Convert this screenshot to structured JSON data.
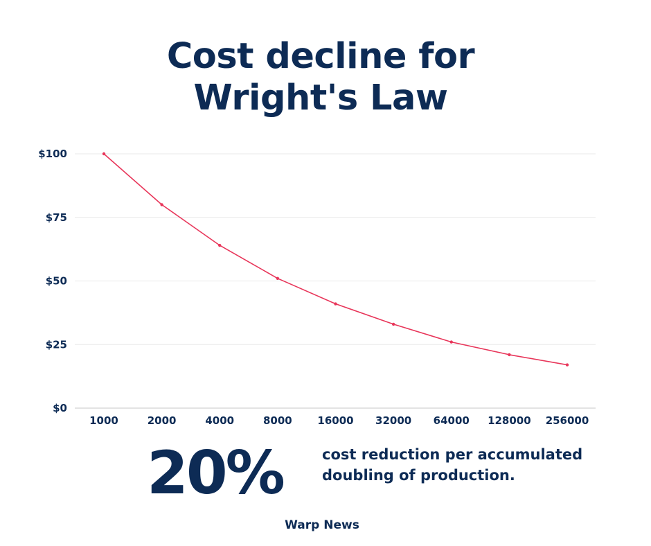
{
  "title": {
    "line1": "Cost decline for",
    "line2": "Wright's Law"
  },
  "chart_data": {
    "type": "line",
    "title": "Cost decline for Wright's Law",
    "xlabel": "",
    "ylabel": "",
    "categories": [
      "1000",
      "2000",
      "4000",
      "8000",
      "16000",
      "32000",
      "64000",
      "128000",
      "256000"
    ],
    "series": [
      {
        "name": "Cost",
        "values": [
          100,
          80,
          64,
          51,
          41,
          33,
          26,
          21,
          17
        ]
      }
    ],
    "ylim": [
      0,
      100
    ],
    "yticks": [
      0,
      25,
      50,
      75,
      100
    ],
    "ytick_labels": [
      "$0",
      "$25",
      "$50",
      "$75",
      "$100"
    ],
    "grid": true,
    "legend": "none",
    "colors": {
      "line": "#e8365a",
      "grid": "#e9e9e9",
      "axis": "#c7c7c7",
      "text": "#0d2b55"
    }
  },
  "stat": {
    "value": "20%",
    "line1": "cost reduction per accumulated",
    "line2": "doubling of production."
  },
  "footer": {
    "brand": "Warp News"
  }
}
